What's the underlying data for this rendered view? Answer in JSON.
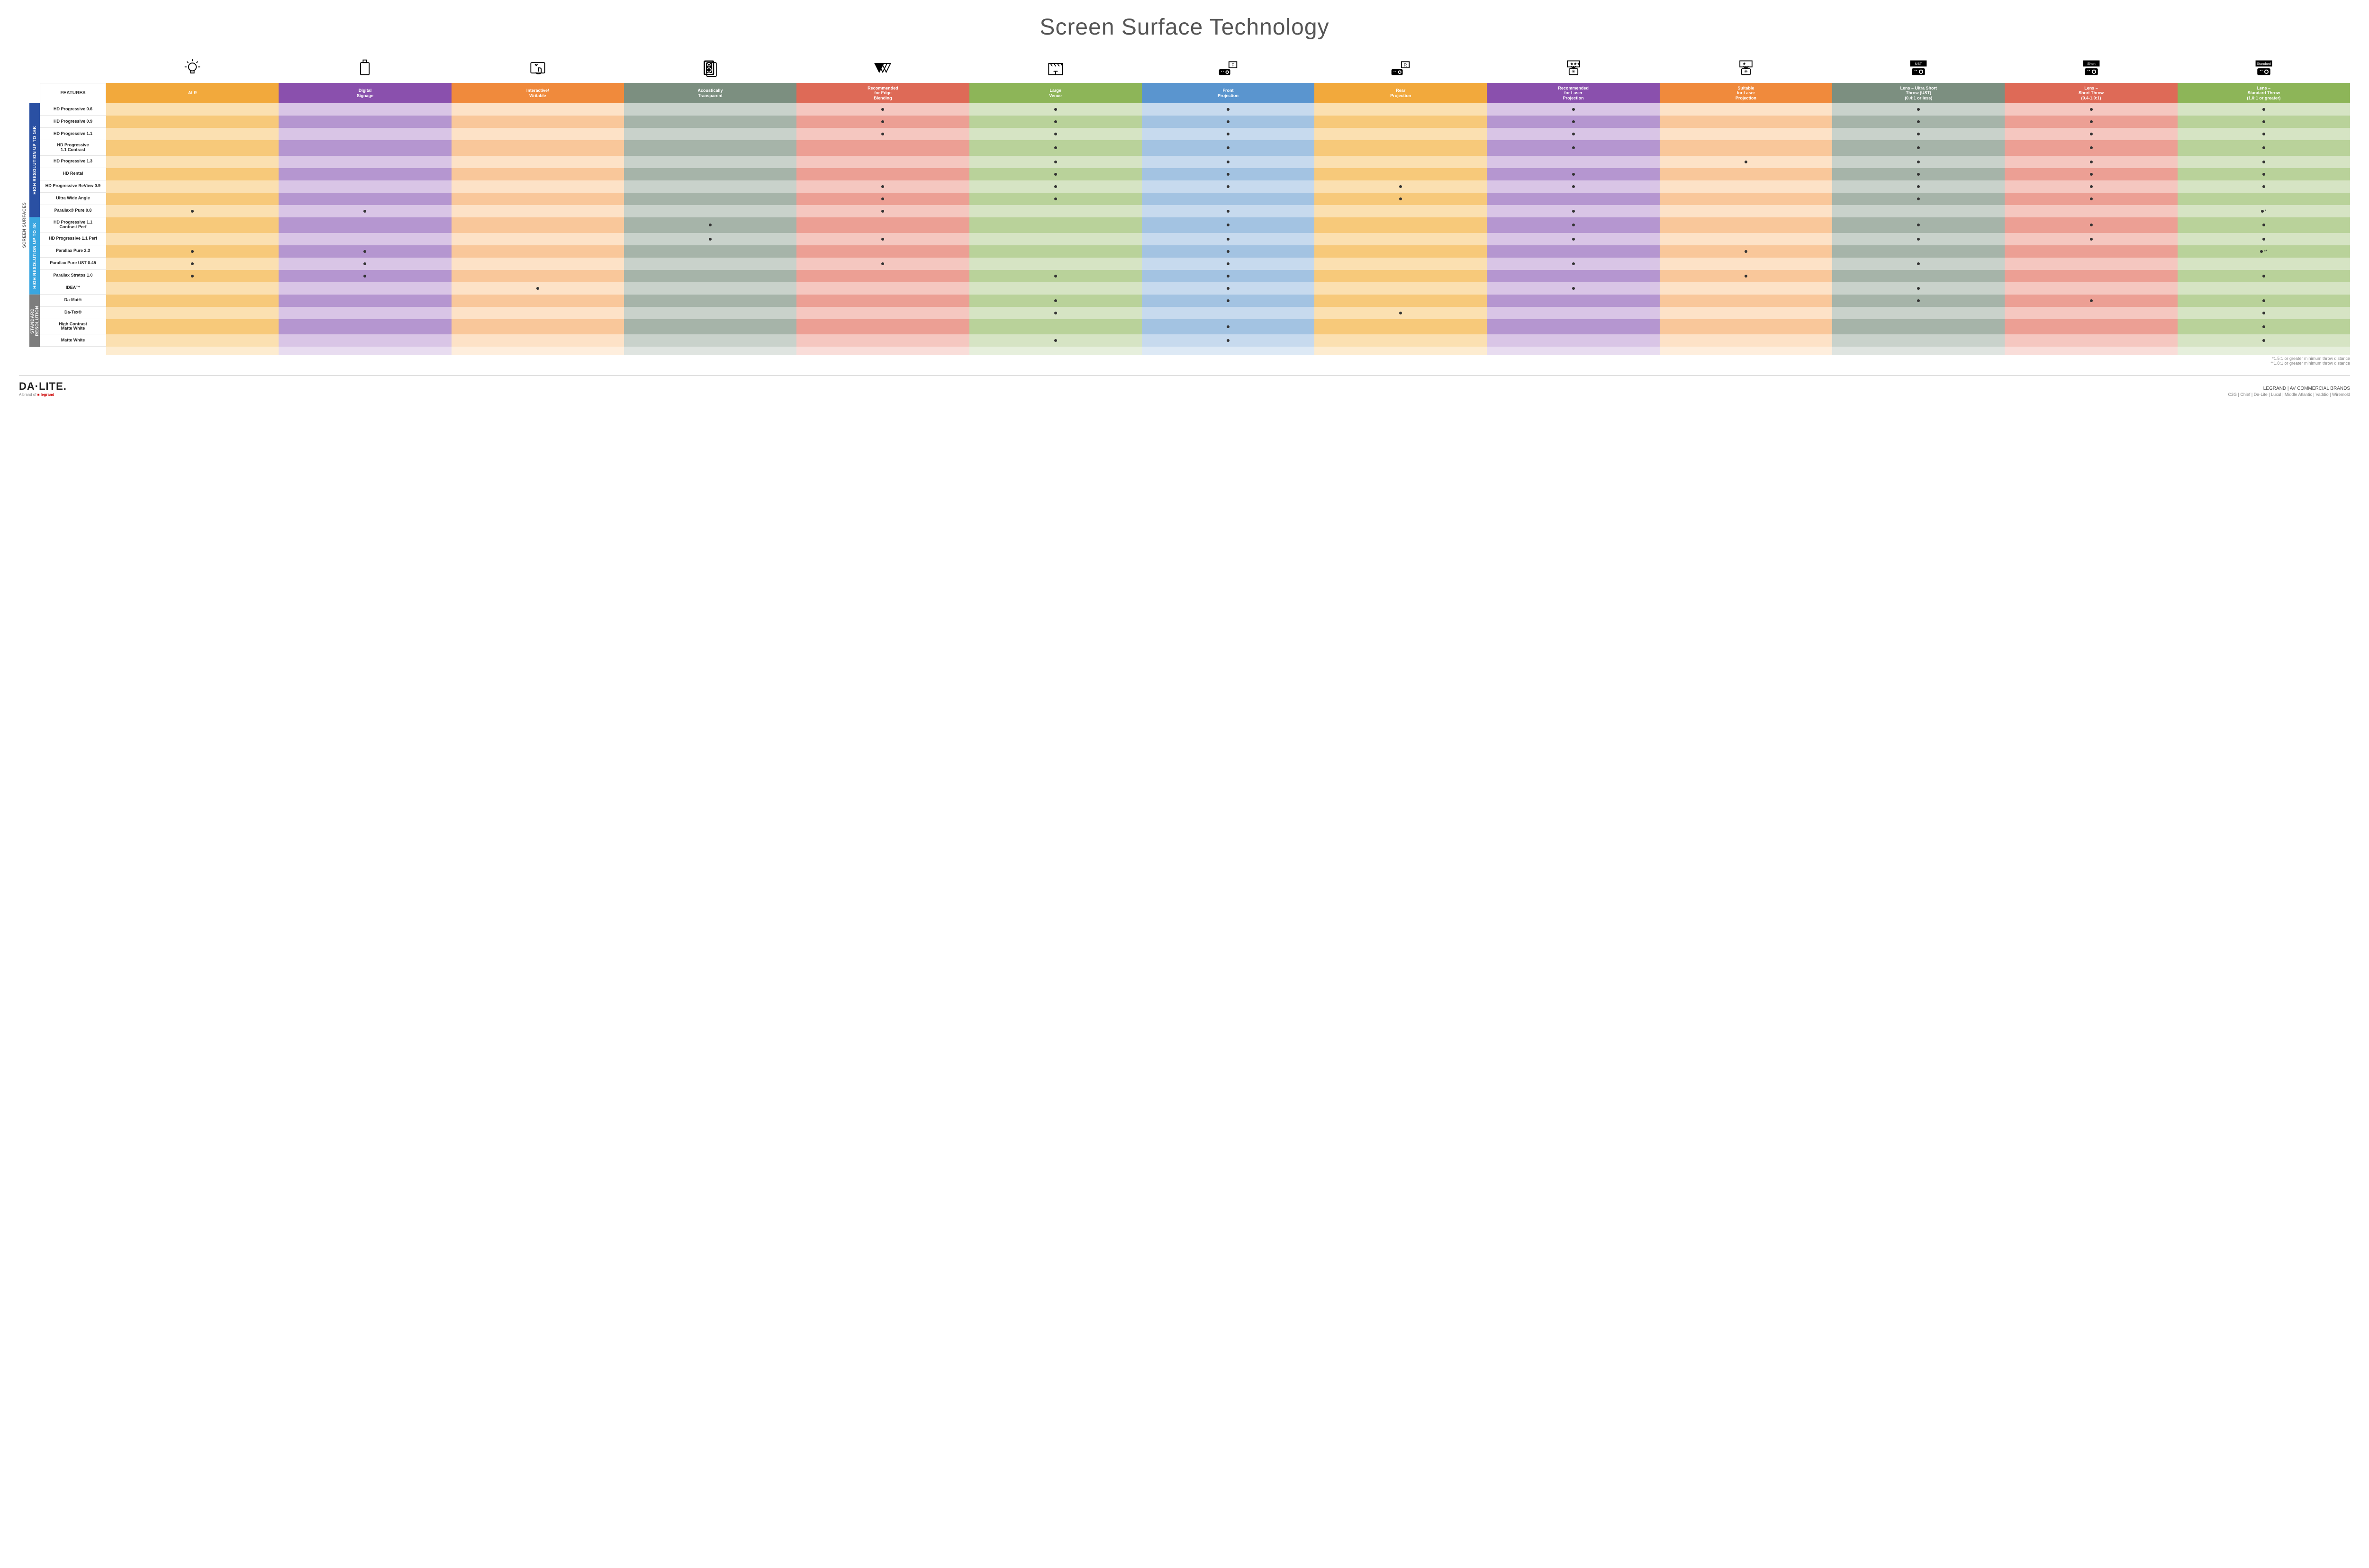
{
  "title": "Screen Surface Technology",
  "features_label": "FEATURES",
  "columns": [
    {
      "key": "alr",
      "label": "ALR",
      "light": "#fbe0b1",
      "dark": "#f7c97a",
      "hdr": "#f2a93c"
    },
    {
      "key": "signage",
      "label": "Digital\nSignage",
      "light": "#d9c5e6",
      "dark": "#b596d0",
      "hdr": "#8a50ad"
    },
    {
      "key": "interactive",
      "label": "Interactive/\nWritable",
      "light": "#fde2c7",
      "dark": "#f9c79a",
      "hdr": "#f08a3c"
    },
    {
      "key": "acoustic",
      "label": "Acoustically\nTransparent",
      "light": "#c9d2cb",
      "dark": "#a6b4a9",
      "hdr": "#7c8f80"
    },
    {
      "key": "edge",
      "label": "Recommended\nfor Edge\nBlending",
      "light": "#f5c7c0",
      "dark": "#ec9f94",
      "hdr": "#de6a57"
    },
    {
      "key": "large",
      "label": "Large\nVenue",
      "light": "#d6e4c4",
      "dark": "#b9d29a",
      "hdr": "#8db558"
    },
    {
      "key": "front",
      "label": "Front\nProjection",
      "light": "#c7daee",
      "dark": "#a3c3e2",
      "hdr": "#5a95cf"
    },
    {
      "key": "rear",
      "label": "Rear\nProjection",
      "light": "#fbe0b1",
      "dark": "#f7c97a",
      "hdr": "#f2a93c"
    },
    {
      "key": "rec_laser",
      "label": "Recommended\nfor Laser\nProjection",
      "light": "#d9c5e6",
      "dark": "#b596d0",
      "hdr": "#8a50ad"
    },
    {
      "key": "suit_laser",
      "label": "Suitable\nfor Laser\nProjection",
      "light": "#fde2c7",
      "dark": "#f9c79a",
      "hdr": "#f08a3c"
    },
    {
      "key": "ust",
      "label": "Lens – Ultra Short\nThrow (UST)\n(0.4:1 or less)",
      "light": "#c9d2cb",
      "dark": "#a6b4a9",
      "hdr": "#7c8f80"
    },
    {
      "key": "short",
      "label": "Lens –\nShort Throw\n(0.4-1.0:1)",
      "light": "#f5c7c0",
      "dark": "#ec9f94",
      "hdr": "#de6a57"
    },
    {
      "key": "std",
      "label": "Lens –\nStandard Throw\n(1.0:1 or greater)",
      "light": "#d6e4c4",
      "dark": "#b9d29a",
      "hdr": "#8db558"
    }
  ],
  "groups": [
    {
      "key": "g16k",
      "label": "HIGH RESOLUTION UP TO 16K",
      "color": "#2a50a3",
      "rows": 9
    },
    {
      "key": "g4k",
      "label": "HIGH RESOLUTION UP TO 4K",
      "color": "#3aa6e0",
      "rows": 6
    },
    {
      "key": "gstd",
      "label": "STANDARD\nRESOLUTION",
      "color": "#7d7d7d",
      "rows": 4
    }
  ],
  "outer_label": "SCREEN SURFACES",
  "rows": [
    {
      "label": "HD Progressive 0.6",
      "dots": {
        "edge": "",
        "large": "",
        "front": "",
        "rec_laser": "",
        "ust": "",
        "short": "",
        "std": ""
      }
    },
    {
      "label": "HD Progressive 0.9",
      "dots": {
        "edge": "",
        "large": "",
        "front": "",
        "rec_laser": "",
        "ust": "",
        "short": "",
        "std": ""
      }
    },
    {
      "label": "HD Progressive 1.1",
      "dots": {
        "edge": "",
        "large": "",
        "front": "",
        "rec_laser": "",
        "ust": "",
        "short": "",
        "std": ""
      }
    },
    {
      "label": "HD Progressive\n1.1 Contrast",
      "dots": {
        "large": "",
        "front": "",
        "rec_laser": "",
        "ust": "",
        "short": "",
        "std": ""
      }
    },
    {
      "label": "HD Progressive 1.3",
      "dots": {
        "large": "",
        "front": "",
        "suit_laser": "",
        "ust": "",
        "short": "",
        "std": ""
      }
    },
    {
      "label": "HD Rental",
      "dots": {
        "large": "",
        "front": "",
        "rec_laser": "",
        "ust": "",
        "short": "",
        "std": ""
      }
    },
    {
      "label": "HD Progressive ReView 0.9",
      "dots": {
        "edge": "",
        "large": "",
        "front": "",
        "rear": "",
        "rec_laser": "",
        "ust": "",
        "short": "",
        "std": ""
      }
    },
    {
      "label": "Ultra Wide Angle",
      "dots": {
        "edge": "",
        "large": "",
        "rear": "",
        "ust": "",
        "short": ""
      }
    },
    {
      "label": "Parallax® Pure 0.8",
      "dots": {
        "alr": "",
        "signage": "",
        "edge": "",
        "front": "",
        "rec_laser": "",
        "std": "*"
      }
    },
    {
      "label": "HD Progressive 1.1\nContrast Perf",
      "dots": {
        "acoustic": "",
        "front": "",
        "rec_laser": "",
        "ust": "",
        "short": "",
        "std": ""
      }
    },
    {
      "label": "HD Progressive 1.1 Perf",
      "dots": {
        "acoustic": "",
        "edge": "",
        "front": "",
        "rec_laser": "",
        "ust": "",
        "short": "",
        "std": ""
      }
    },
    {
      "label": "Parallax Pure 2.3",
      "dots": {
        "alr": "",
        "signage": "",
        "front": "",
        "suit_laser": "",
        "std": "**"
      }
    },
    {
      "label": "Parallax Pure UST 0.45",
      "dots": {
        "alr": "",
        "signage": "",
        "edge": "",
        "front": "",
        "rec_laser": "",
        "ust": ""
      }
    },
    {
      "label": "Parallax Stratos 1.0",
      "dots": {
        "alr": "",
        "signage": "",
        "large": "",
        "front": "",
        "suit_laser": "",
        "std": ""
      }
    },
    {
      "label": "IDEA™",
      "dots": {
        "interactive": "",
        "front": "",
        "rec_laser": "",
        "ust": ""
      }
    },
    {
      "label": "Da-Mat®",
      "dots": {
        "large": "",
        "front": "",
        "ust": "",
        "short": "",
        "std": ""
      }
    },
    {
      "label": "Da-Tex®",
      "dots": {
        "large": "",
        "rear": "",
        "std": ""
      }
    },
    {
      "label": "High Contrast\nMatte White",
      "dots": {
        "front": "",
        "std": ""
      }
    },
    {
      "label": "Matte White",
      "dots": {
        "large": "",
        "front": "",
        "std": ""
      }
    }
  ],
  "footnotes": [
    "*1.5:1 or greater minimum throw distance",
    "**1.8:1 or greater minimum throw distance"
  ],
  "footer": {
    "brand": "DA·LITE.",
    "brand_sub_prefix": "A brand of ",
    "brand_sub_logo": "legrand",
    "right_title": "LEGRAND | AV COMMERCIAL BRANDS",
    "right_brands": "C2G  |  Chief  |  Da-Lite  |  Luxul  |  Middle Atlantic  |  Vaddio  |  Wiremold"
  },
  "icons": {
    "alr": "bulb",
    "signage": "display",
    "interactive": "touch",
    "acoustic": "speaker",
    "edge": "triangles",
    "large": "stage",
    "front": "proj_f",
    "rear": "proj_r",
    "rec_laser": "laser3",
    "suit_laser": "laser1",
    "ust": "throw_ust",
    "short": "throw_short",
    "std": "throw_std"
  }
}
